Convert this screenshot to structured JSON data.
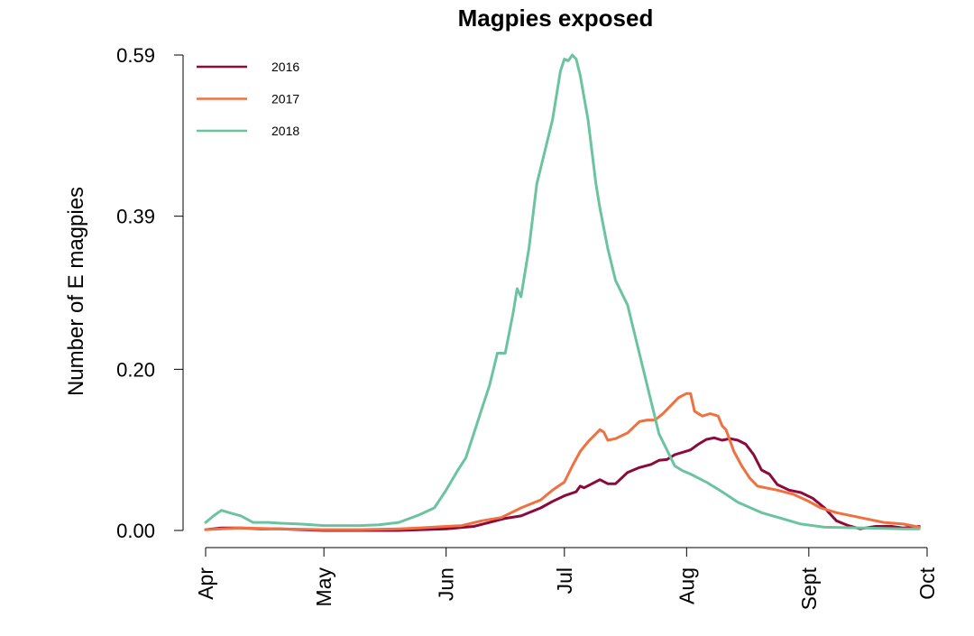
{
  "chart_data": {
    "type": "line",
    "title": "Magpies exposed",
    "xlabel": "",
    "ylabel": "Number of E magpies",
    "xlim": [
      "Apr 1",
      "Oct 1"
    ],
    "ylim": [
      0.0,
      0.59
    ],
    "y_ticks": [
      "0.00",
      "0.20",
      "0.39",
      "0.59"
    ],
    "y_tick_values": [
      0.0,
      0.2,
      0.39,
      0.59
    ],
    "x_ticks": [
      "Apr",
      "May",
      "Jun",
      "Jul",
      "Aug",
      "Sept",
      "Oct"
    ],
    "x_tick_values": [
      "Apr 1",
      "May 1",
      "Jun 1",
      "Jul 1",
      "Aug 1",
      "Sep 1",
      "Oct 1"
    ],
    "grid": false,
    "legend_position": "top-left",
    "series": [
      {
        "name": "2016",
        "color": "#8b0a3a",
        "points": [
          [
            "Apr 1",
            0.001
          ],
          [
            "Apr 5",
            0.003
          ],
          [
            "Apr 10",
            0.003
          ],
          [
            "Apr 15",
            0.002
          ],
          [
            "Apr 20",
            0.002
          ],
          [
            "Apr 25",
            0.001
          ],
          [
            "May 1",
            0.0
          ],
          [
            "May 10",
            0.0
          ],
          [
            "May 20",
            0.0
          ],
          [
            "Jun 1",
            0.002
          ],
          [
            "Jun 8",
            0.005
          ],
          [
            "Jun 12",
            0.01
          ],
          [
            "Jun 16",
            0.015
          ],
          [
            "Jun 20",
            0.018
          ],
          [
            "Jun 25",
            0.028
          ],
          [
            "Jun 28",
            0.036
          ],
          [
            "Jul 1",
            0.043
          ],
          [
            "Jul 4",
            0.048
          ],
          [
            "Jul 5",
            0.055
          ],
          [
            "Jul 6",
            0.053
          ],
          [
            "Jul 10",
            0.063
          ],
          [
            "Jul 12",
            0.058
          ],
          [
            "Jul 14",
            0.058
          ],
          [
            "Jul 17",
            0.072
          ],
          [
            "Jul 20",
            0.078
          ],
          [
            "Jul 23",
            0.082
          ],
          [
            "Jul 25",
            0.087
          ],
          [
            "Jul 27",
            0.088
          ],
          [
            "Jul 29",
            0.094
          ],
          [
            "Aug 2",
            0.1
          ],
          [
            "Aug 4",
            0.107
          ],
          [
            "Aug 6",
            0.113
          ],
          [
            "Aug 8",
            0.115
          ],
          [
            "Aug 10",
            0.112
          ],
          [
            "Aug 12",
            0.114
          ],
          [
            "Aug 14",
            0.112
          ],
          [
            "Aug 16",
            0.107
          ],
          [
            "Aug 18",
            0.094
          ],
          [
            "Aug 20",
            0.075
          ],
          [
            "Aug 22",
            0.07
          ],
          [
            "Aug 24",
            0.057
          ],
          [
            "Aug 27",
            0.05
          ],
          [
            "Aug 30",
            0.047
          ],
          [
            "Sep 2",
            0.04
          ],
          [
            "Sep 5",
            0.028
          ],
          [
            "Sep 8",
            0.012
          ],
          [
            "Sep 11",
            0.006
          ],
          [
            "Sep 14",
            0.002
          ],
          [
            "Sep 18",
            0.005
          ],
          [
            "Sep 22",
            0.005
          ],
          [
            "Sep 25",
            0.003
          ],
          [
            "Sep 29",
            0.005
          ]
        ]
      },
      {
        "name": "2017",
        "color": "#f07040",
        "points": [
          [
            "Apr 1",
            0.001
          ],
          [
            "Apr 5",
            0.002
          ],
          [
            "Apr 10",
            0.003
          ],
          [
            "Apr 20",
            0.002
          ],
          [
            "May 1",
            0.001
          ],
          [
            "May 10",
            0.001
          ],
          [
            "May 20",
            0.002
          ],
          [
            "May 25",
            0.003
          ],
          [
            "Jun 1",
            0.005
          ],
          [
            "Jun 5",
            0.006
          ],
          [
            "Jun 10",
            0.012
          ],
          [
            "Jun 15",
            0.016
          ],
          [
            "Jun 20",
            0.028
          ],
          [
            "Jun 25",
            0.038
          ],
          [
            "Jun 28",
            0.05
          ],
          [
            "Jul 1",
            0.06
          ],
          [
            "Jul 3",
            0.08
          ],
          [
            "Jul 5",
            0.098
          ],
          [
            "Jul 7",
            0.11
          ],
          [
            "Jul 9",
            0.12
          ],
          [
            "Jul 10",
            0.125
          ],
          [
            "Jul 11",
            0.122
          ],
          [
            "Jul 12",
            0.112
          ],
          [
            "Jul 14",
            0.114
          ],
          [
            "Jul 17",
            0.121
          ],
          [
            "Jul 20",
            0.135
          ],
          [
            "Jul 22",
            0.137
          ],
          [
            "Jul 24",
            0.137
          ],
          [
            "Jul 26",
            0.145
          ],
          [
            "Jul 28",
            0.155
          ],
          [
            "Jul 30",
            0.165
          ],
          [
            "Aug 1",
            0.17
          ],
          [
            "Aug 2",
            0.17
          ],
          [
            "Aug 3",
            0.148
          ],
          [
            "Aug 5",
            0.142
          ],
          [
            "Aug 7",
            0.145
          ],
          [
            "Aug 9",
            0.142
          ],
          [
            "Aug 10",
            0.13
          ],
          [
            "Aug 11",
            0.125
          ],
          [
            "Aug 13",
            0.098
          ],
          [
            "Aug 15",
            0.08
          ],
          [
            "Aug 17",
            0.065
          ],
          [
            "Aug 19",
            0.055
          ],
          [
            "Aug 21",
            0.053
          ],
          [
            "Aug 24",
            0.05
          ],
          [
            "Aug 28",
            0.045
          ],
          [
            "Sep 1",
            0.036
          ],
          [
            "Sep 4",
            0.028
          ],
          [
            "Sep 8",
            0.022
          ],
          [
            "Sep 14",
            0.016
          ],
          [
            "Sep 20",
            0.01
          ],
          [
            "Sep 25",
            0.008
          ],
          [
            "Sep 29",
            0.004
          ]
        ]
      },
      {
        "name": "2018",
        "color": "#6cc3a0",
        "points": [
          [
            "Apr 1",
            0.01
          ],
          [
            "Apr 3",
            0.018
          ],
          [
            "Apr 5",
            0.025
          ],
          [
            "Apr 7",
            0.022
          ],
          [
            "Apr 10",
            0.018
          ],
          [
            "Apr 13",
            0.01
          ],
          [
            "Apr 17",
            0.01
          ],
          [
            "Apr 20",
            0.009
          ],
          [
            "Apr 25",
            0.008
          ],
          [
            "May 1",
            0.006
          ],
          [
            "May 10",
            0.006
          ],
          [
            "May 15",
            0.007
          ],
          [
            "May 20",
            0.01
          ],
          [
            "May 25",
            0.019
          ],
          [
            "May 29",
            0.028
          ],
          [
            "Jun 1",
            0.05
          ],
          [
            "Jun 4",
            0.075
          ],
          [
            "Jun 6",
            0.09
          ],
          [
            "Jun 8",
            0.12
          ],
          [
            "Jun 10",
            0.15
          ],
          [
            "Jun 12",
            0.18
          ],
          [
            "Jun 14",
            0.22
          ],
          [
            "Jun 16",
            0.22
          ],
          [
            "Jun 18",
            0.27
          ],
          [
            "Jun 19",
            0.3
          ],
          [
            "Jun 20",
            0.29
          ],
          [
            "Jun 22",
            0.35
          ],
          [
            "Jun 24",
            0.43
          ],
          [
            "Jun 26",
            0.47
          ],
          [
            "Jun 28",
            0.51
          ],
          [
            "Jun 30",
            0.57
          ],
          [
            "Jul 1",
            0.585
          ],
          [
            "Jul 2",
            0.583
          ],
          [
            "Jul 3",
            0.59
          ],
          [
            "Jul 4",
            0.585
          ],
          [
            "Jul 5",
            0.565
          ],
          [
            "Jul 7",
            0.51
          ],
          [
            "Jul 9",
            0.43
          ],
          [
            "Jul 10",
            0.4
          ],
          [
            "Jul 12",
            0.35
          ],
          [
            "Jul 14",
            0.31
          ],
          [
            "Jul 17",
            0.28
          ],
          [
            "Jul 20",
            0.22
          ],
          [
            "Jul 23",
            0.16
          ],
          [
            "Jul 25",
            0.12
          ],
          [
            "Jul 27",
            0.1
          ],
          [
            "Jul 29",
            0.08
          ],
          [
            "Jul 31",
            0.074
          ],
          [
            "Aug 2",
            0.07
          ],
          [
            "Aug 6",
            0.06
          ],
          [
            "Aug 10",
            0.048
          ],
          [
            "Aug 14",
            0.035
          ],
          [
            "Aug 20",
            0.022
          ],
          [
            "Aug 25",
            0.015
          ],
          [
            "Aug 30",
            0.008
          ],
          [
            "Sep 5",
            0.004
          ],
          [
            "Sep 15",
            0.003
          ],
          [
            "Sep 25",
            0.002
          ],
          [
            "Sep 29",
            0.002
          ]
        ]
      }
    ]
  }
}
